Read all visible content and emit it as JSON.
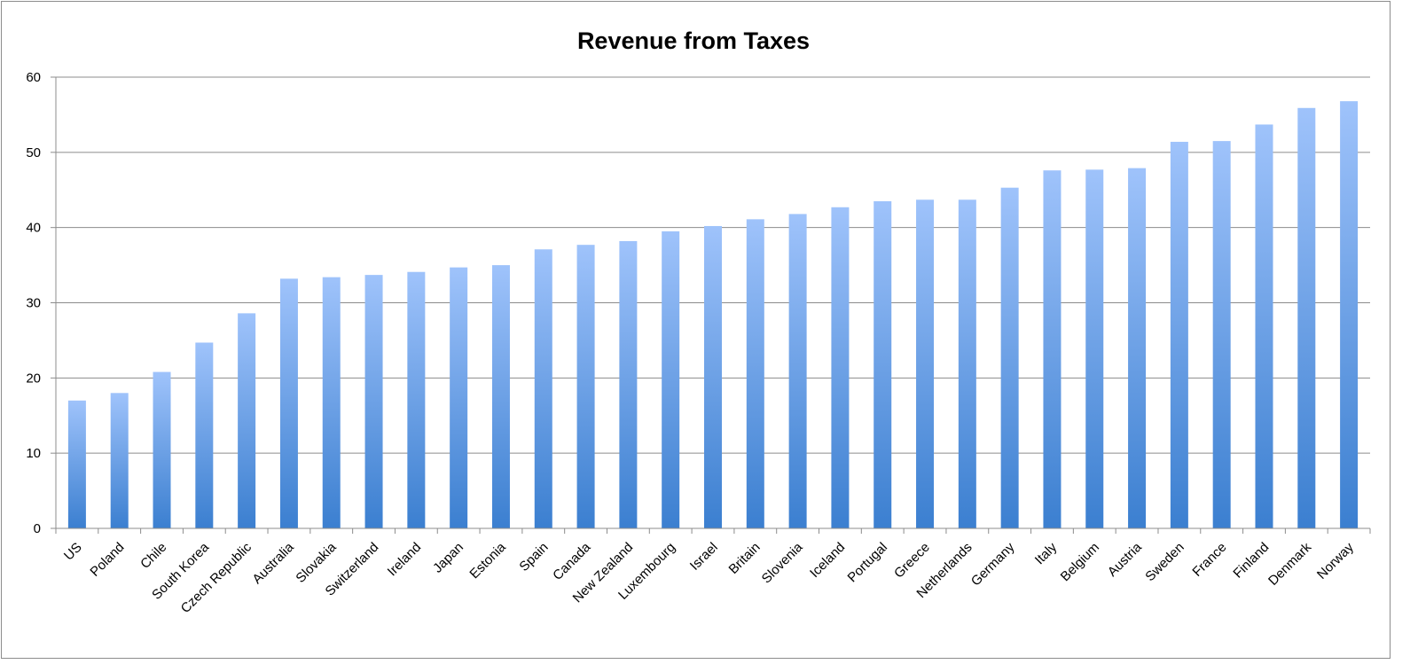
{
  "chart_data": {
    "type": "bar",
    "title": "Revenue from Taxes",
    "xlabel": "",
    "ylabel": "",
    "ylim": [
      0,
      60
    ],
    "yticks": [
      0,
      10,
      20,
      30,
      40,
      50,
      60
    ],
    "grid": true,
    "legend": "none",
    "bar_color_top": "#9fc3fb",
    "bar_color_bottom": "#3b7fd0",
    "categories": [
      "US",
      "Poland",
      "Chile",
      "South Korea",
      "Czech Republic",
      "Australia",
      "Slovakia",
      "Switzerland",
      "Ireland",
      "Japan",
      "Estonia",
      "Spain",
      "Canada",
      "New Zealand",
      "Luxembourg",
      "Israel",
      "Britain",
      "Slovenia",
      "Iceland",
      "Portugal",
      "Greece",
      "Netherlands",
      "Germany",
      "Italy",
      "Belgium",
      "Austria",
      "Sweden",
      "France",
      "Finland",
      "Denmark",
      "Norway"
    ],
    "values": [
      17.0,
      18.0,
      20.8,
      24.7,
      28.6,
      33.2,
      33.4,
      33.7,
      34.1,
      34.7,
      35.0,
      37.1,
      37.7,
      38.2,
      39.5,
      40.2,
      41.1,
      41.8,
      42.7,
      43.5,
      43.7,
      43.7,
      45.3,
      47.6,
      47.7,
      47.9,
      51.4,
      51.5,
      53.7,
      55.9,
      56.8
    ]
  }
}
